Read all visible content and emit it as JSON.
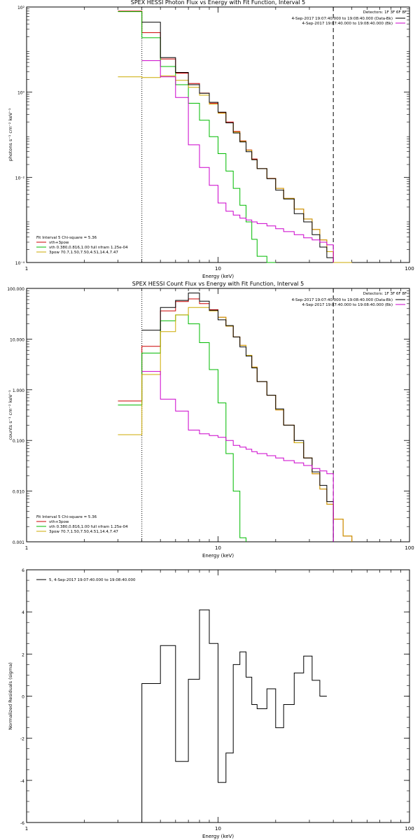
{
  "chart_data": [
    {
      "type": "line",
      "title": "SPEX HESSI Photon Flux vs Energy with Fit Function, Interval 5",
      "xlabel": "Energy (keV)",
      "ylabel": "photons s⁻¹ cm⁻² keV⁻¹",
      "xscale": "log",
      "yscale": "log",
      "xlim": [
        1,
        100
      ],
      "ylim": [
        0.0001,
        100
      ],
      "xticks": [
        {
          "v": 1,
          "t": "1"
        },
        {
          "v": 10,
          "t": "10"
        },
        {
          "v": 100,
          "t": "100"
        }
      ],
      "yticks": [
        {
          "v": 100,
          "t": "10²"
        },
        {
          "v": 1,
          "t": "10⁰"
        },
        {
          "v": 0.01,
          "t": "10⁻²"
        },
        {
          "v": 0.0001,
          "t": "10⁻⁴"
        }
      ],
      "legend_top_right": {
        "header": "Detectors: 1F 3F 6F 8F",
        "entries": [
          {
            "text": "4-Sep-2017 19:07:40.000 to 19:08:40.000 (Data-Bk)",
            "color": "#000000"
          },
          {
            "text": "4-Sep-2017 19:07:40.000 to 19:08:40.000 (Bk)",
            "color": "#cc00cc"
          }
        ]
      },
      "legend_bottom_left": {
        "header": "Fit Interval 5   Chi-square = 5.36",
        "entries": [
          {
            "text": "vth+3pow",
            "color": "#cc0000"
          },
          {
            "text": "vth 0.380,0.816,1.00  full nfram 1.25e-04",
            "color": "#00bb00"
          },
          {
            "text": "3pow 70.7,1.50,7.50,4.51,14.4,7.47",
            "color": "#ccaa00"
          }
        ]
      },
      "vlines": [
        {
          "x": 4,
          "style": "dotted"
        },
        {
          "x": 40,
          "style": "dashed"
        }
      ],
      "edges": [
        3,
        4,
        5,
        6,
        7,
        8,
        9,
        10,
        11,
        12,
        13,
        14,
        15,
        16,
        18,
        20,
        22,
        25,
        28,
        31,
        34,
        37,
        40,
        45,
        50
      ],
      "series": [
        {
          "color": "#cc0000",
          "values": [
            80,
            25,
            6,
            2.8,
            1.6,
            0.95,
            0.55,
            0.33,
            0.2,
            0.12,
            0.072,
            0.044,
            0.027,
            0.016,
            0.0095,
            0.0055,
            0.0032,
            0.0018,
            0.00105,
            0.0006,
            0.00034,
            0.00018,
            0.0001,
            5e-05
          ]
        },
        {
          "color": "#00bb00",
          "values": [
            78,
            19,
            4,
            1.5,
            0.55,
            0.22,
            0.09,
            0.036,
            0.014,
            0.0055,
            0.0022,
            0.0009,
            0.00035,
            0.00014,
            6e-05
          ]
        },
        {
          "color": "#ccaa00",
          "values": [
            2.3,
            2.2,
            2.4,
            1.9,
            1.3,
            0.85,
            0.52,
            0.32,
            0.19,
            0.115,
            0.07,
            0.043,
            0.026,
            0.016,
            0.0094,
            0.0055,
            0.0032,
            0.0018,
            0.00105,
            0.0006,
            0.00034,
            0.00018,
            0.0001,
            5e-05
          ]
        },
        {
          "color": "#000000",
          "values": [
            null,
            44,
            6.5,
            2.9,
            1.5,
            0.94,
            0.58,
            0.34,
            0.19,
            0.11,
            0.068,
            0.04,
            0.026,
            0.016,
            0.0093,
            0.005,
            0.0031,
            0.0014,
            0.0009,
            0.00045,
            0.00023,
            0.00013
          ]
        },
        {
          "color": "#cc00cc",
          "values": [
            null,
            5.5,
            2.3,
            0.75,
            0.058,
            0.017,
            0.0065,
            0.0025,
            0.0016,
            0.0013,
            0.0011,
            0.001,
            0.0009,
            0.00082,
            0.00072,
            0.00062,
            0.00053,
            0.00045,
            0.00038,
            0.00034,
            0.0003,
            0.00026
          ]
        }
      ]
    },
    {
      "type": "line",
      "title": "SPEX HESSI Count Flux vs Energy with Fit Function, Interval 5",
      "xlabel": "Energy (keV)",
      "ylabel": "counts s⁻¹ cm⁻² keV⁻¹",
      "xscale": "log",
      "yscale": "log",
      "xlim": [
        1,
        100
      ],
      "ylim": [
        0.001,
        100
      ],
      "xticks": [
        {
          "v": 1,
          "t": "1"
        },
        {
          "v": 10,
          "t": "10"
        },
        {
          "v": 100,
          "t": "100"
        }
      ],
      "yticks": [
        {
          "v": 100,
          "t": "100.000"
        },
        {
          "v": 10,
          "t": "10.000"
        },
        {
          "v": 1,
          "t": "1.000"
        },
        {
          "v": 0.1,
          "t": "0.100"
        },
        {
          "v": 0.01,
          "t": "0.010"
        },
        {
          "v": 0.001,
          "t": "0.001"
        }
      ],
      "legend_top_right": {
        "header": "Detectors: 1F 3F 6F 8F",
        "entries": [
          {
            "text": "4-Sep-2017 19:07:40.000 to 19:08:40.000 (Data-Bk)",
            "color": "#000000"
          },
          {
            "text": "4-Sep-2017 19:07:40.000 to 19:08:40.000 (Bk)",
            "color": "#cc00cc"
          }
        ]
      },
      "legend_bottom_left": {
        "header": "Fit Interval 5   Chi-square = 5.36",
        "entries": [
          {
            "text": "vth+3pow",
            "color": "#cc0000"
          },
          {
            "text": "vth 0.380,0.816,1.00  full nfram 1.25e-04",
            "color": "#00bb00"
          },
          {
            "text": "3pow 70.7,1.50,7.50,4.51,14.4,7.47",
            "color": "#ccaa00"
          }
        ]
      },
      "vlines": [
        {
          "x": 4,
          "style": "dotted"
        },
        {
          "x": 40,
          "style": "dashed"
        }
      ],
      "edges": [
        3,
        4,
        5,
        6,
        7,
        8,
        9,
        10,
        11,
        12,
        13,
        14,
        15,
        16,
        18,
        20,
        22,
        25,
        28,
        31,
        34,
        37,
        40,
        45,
        50
      ],
      "series": [
        {
          "color": "#cc0000",
          "values": [
            0.6,
            7.2,
            36,
            55,
            62,
            50,
            38,
            27,
            18,
            11,
            7.5,
            4.8,
            2.8,
            1.45,
            0.78,
            0.4,
            0.2,
            0.09,
            0.045,
            0.022,
            0.011,
            0.0055,
            0.0028,
            0.0013
          ]
        },
        {
          "color": "#00bb00",
          "values": [
            0.5,
            5.3,
            23,
            30,
            20,
            8.5,
            2.5,
            0.55,
            0.055,
            0.01,
            0.0012
          ]
        },
        {
          "color": "#ccaa00",
          "values": [
            0.13,
            2,
            14,
            30,
            42,
            42,
            36,
            27,
            18,
            11,
            7.5,
            4.8,
            2.8,
            1.45,
            0.78,
            0.4,
            0.2,
            0.09,
            0.045,
            0.022,
            0.011,
            0.0055,
            0.0028,
            0.0013
          ]
        },
        {
          "color": "#000000",
          "values": [
            null,
            15,
            42,
            58,
            81,
            56,
            37,
            24,
            18.5,
            11,
            7,
            4.6,
            2.7,
            1.45,
            0.78,
            0.42,
            0.2,
            0.1,
            0.045,
            0.024,
            0.013,
            0.0062
          ]
        },
        {
          "color": "#cc00cc",
          "values": [
            null,
            2.3,
            0.65,
            0.38,
            0.16,
            0.135,
            0.125,
            0.115,
            0.1,
            0.08,
            0.074,
            0.067,
            0.06,
            0.055,
            0.05,
            0.045,
            0.04,
            0.036,
            0.032,
            0.028,
            0.025,
            0.022
          ]
        }
      ]
    },
    {
      "type": "line",
      "title": "",
      "xlabel": "Energy (keV)",
      "ylabel": "Normalized Residuals (sigma)",
      "xscale": "log",
      "yscale": "linear",
      "xlim": [
        1,
        100
      ],
      "ylim": [
        -6,
        6
      ],
      "xticks": [
        {
          "v": 1,
          "t": "1"
        },
        {
          "v": 10,
          "t": "10"
        },
        {
          "v": 100,
          "t": "100"
        }
      ],
      "yticks": [
        {
          "v": 6,
          "t": "6"
        },
        {
          "v": 4,
          "t": "4"
        },
        {
          "v": 2,
          "t": "2"
        },
        {
          "v": 0,
          "t": "0"
        },
        {
          "v": -2,
          "t": "-2"
        },
        {
          "v": -4,
          "t": "-4"
        },
        {
          "v": -6,
          "t": "-6"
        }
      ],
      "legend_top_left": {
        "entries": [
          {
            "text": "5, 4-Sep-2017 19:07:40.000 to 19:08:40.000",
            "color": "#000000"
          }
        ]
      },
      "edges": [
        4,
        5,
        6,
        7,
        8,
        9,
        10,
        11,
        12,
        13,
        14,
        15,
        16,
        18,
        20,
        22,
        25,
        28,
        31,
        34,
        37,
        40
      ],
      "series": [
        {
          "color": "#000000",
          "values": [
            0.6,
            2.4,
            -3.1,
            0.8,
            4.1,
            2.5,
            -4.1,
            -2.7,
            1.5,
            2.1,
            0.9,
            -0.4,
            -0.6,
            0.35,
            -1.5,
            -0.4,
            1.1,
            1.9,
            0.75,
            0.0
          ]
        }
      ],
      "drop_to_bottom": [
        4
      ]
    }
  ]
}
